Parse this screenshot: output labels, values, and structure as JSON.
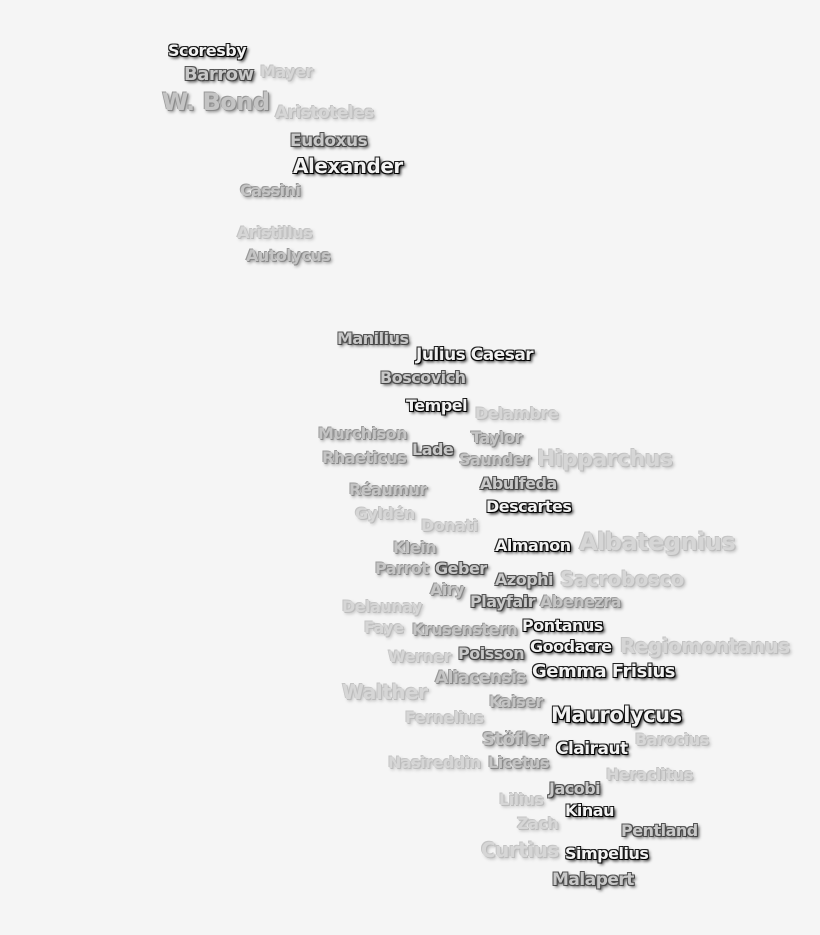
{
  "labels": [
    "Mayer",
    "W. Bond",
    "Aristoteles",
    "Aristillus",
    "Hipparchus",
    "Albategnius",
    "Sacrobosco",
    "Regiomontanus",
    "Walther",
    "Delambre",
    "Gyldén",
    "Donati",
    "Faye",
    "Delaunay",
    "Werner",
    "Fernelius",
    "Barocius",
    "Nasireddin",
    "Heraclitus",
    "Lilius",
    "Zach",
    "Curtius",
    "Cassini",
    "Autolycus",
    "Murchison",
    "Rhaeticus",
    "Taylor",
    "Saunder",
    "Réaumur",
    "Klein",
    "Parrot",
    "Airy",
    "Abenezra",
    "Krusenstern",
    "Aliacensis",
    "Kaiser",
    "Stöfler",
    "Licetus",
    "Barrow",
    "Eudoxus",
    "Manilius",
    "Boscovich",
    "Lade",
    "Abulfeda",
    "Geber",
    "Azophi",
    "Playfair",
    "Poisson",
    "Jacobi",
    "Pentland",
    "Malapert",
    "Scoresby",
    "Alexander",
    "Julius Caesar",
    "Tempel",
    "Descartes",
    "Almanon",
    "Pontanus",
    "Goodacre",
    "Gemma Frisius",
    "Maurolycus",
    "Clairaut",
    "Kinau",
    "Simpelius"
  ]
}
